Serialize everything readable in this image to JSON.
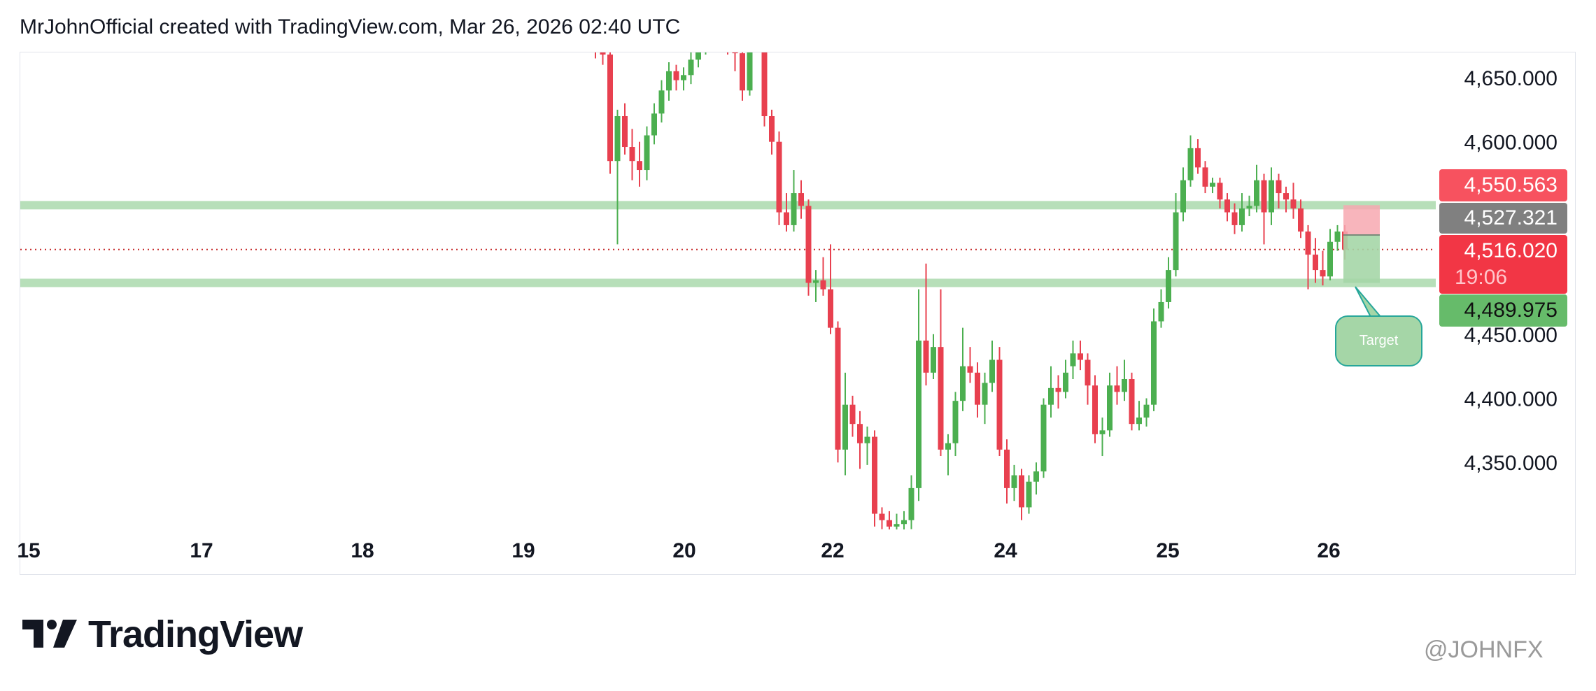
{
  "header": {
    "text": "MrJohnOfficial created with TradingView.com, Mar 26, 2026 02:40 UTC"
  },
  "branding": {
    "logo_text": "TradingView",
    "watermark": "@JOHNFX"
  },
  "chart_data": {
    "type": "candlestick",
    "colors": {
      "up": "#4caf50",
      "down": "#e8404f",
      "zone": "#b7dfb9",
      "current_line": "#c62828"
    },
    "ylim": [
      4298,
      4670
    ],
    "y_ticks": [
      "4,650.000",
      "4,600.000",
      "4,450.000",
      "4,400.000",
      "4,350.000"
    ],
    "y_tick_values": [
      4650,
      4600,
      4450,
      4400,
      4350
    ],
    "x_ticks": [
      "15",
      "17",
      "18",
      "19",
      "20",
      "22",
      "24",
      "25",
      "26"
    ],
    "grid": false,
    "ohlc": [
      [
        4680,
        4690,
        4665,
        4672
      ],
      [
        4672,
        4678,
        4660,
        4668
      ],
      [
        4668,
        4672,
        4575,
        4585
      ],
      [
        4585,
        4625,
        4520,
        4620
      ],
      [
        4620,
        4630,
        4590,
        4596
      ],
      [
        4596,
        4610,
        4570,
        4585
      ],
      [
        4585,
        4600,
        4565,
        4578
      ],
      [
        4578,
        4612,
        4570,
        4605
      ],
      [
        4605,
        4630,
        4598,
        4622
      ],
      [
        4622,
        4648,
        4615,
        4640
      ],
      [
        4640,
        4662,
        4632,
        4655
      ],
      [
        4655,
        4660,
        4640,
        4648
      ],
      [
        4648,
        4658,
        4640,
        4652
      ],
      [
        4652,
        4672,
        4645,
        4664
      ],
      [
        4664,
        4680,
        4658,
        4675
      ],
      [
        4675,
        4692,
        4668,
        4685
      ],
      [
        4685,
        4695,
        4678,
        4690
      ],
      [
        4690,
        4694,
        4678,
        4685
      ],
      [
        4685,
        4690,
        4668,
        4676
      ],
      [
        4676,
        4682,
        4655,
        4669
      ],
      [
        4669,
        4672,
        4632,
        4640
      ],
      [
        4640,
        4680,
        4636,
        4676
      ],
      [
        4676,
        4690,
        4670,
        4680
      ],
      [
        4680,
        4685,
        4612,
        4620
      ],
      [
        4620,
        4625,
        4590,
        4600
      ],
      [
        4600,
        4608,
        4535,
        4545
      ],
      [
        4545,
        4560,
        4530,
        4535
      ],
      [
        4535,
        4578,
        4530,
        4560
      ],
      [
        4560,
        4570,
        4540,
        4550
      ],
      [
        4550,
        4555,
        4480,
        4490
      ],
      [
        4490,
        4500,
        4475,
        4492
      ],
      [
        4492,
        4510,
        4480,
        4485
      ],
      [
        4485,
        4520,
        4450,
        4455
      ],
      [
        4455,
        4460,
        4350,
        4360
      ],
      [
        4360,
        4420,
        4340,
        4395
      ],
      [
        4395,
        4402,
        4370,
        4380
      ],
      [
        4380,
        4390,
        4345,
        4365
      ],
      [
        4365,
        4378,
        4348,
        4370
      ],
      [
        4370,
        4375,
        4300,
        4310
      ],
      [
        4310,
        4315,
        4298,
        4305
      ],
      [
        4305,
        4312,
        4296,
        4300
      ],
      [
        4300,
        4310,
        4296,
        4302
      ],
      [
        4302,
        4312,
        4296,
        4305
      ],
      [
        4305,
        4340,
        4298,
        4330
      ],
      [
        4330,
        4485,
        4320,
        4445
      ],
      [
        4445,
        4505,
        4410,
        4420
      ],
      [
        4420,
        4450,
        4415,
        4440
      ],
      [
        4440,
        4485,
        4355,
        4360
      ],
      [
        4360,
        4372,
        4340,
        4365
      ],
      [
        4365,
        4405,
        4355,
        4398
      ],
      [
        4398,
        4455,
        4390,
        4425
      ],
      [
        4425,
        4440,
        4412,
        4420
      ],
      [
        4420,
        4428,
        4385,
        4395
      ],
      [
        4395,
        4420,
        4380,
        4412
      ],
      [
        4412,
        4445,
        4405,
        4430
      ],
      [
        4430,
        4440,
        4355,
        4360
      ],
      [
        4360,
        4368,
        4318,
        4330
      ],
      [
        4330,
        4348,
        4320,
        4340
      ],
      [
        4340,
        4345,
        4305,
        4315
      ],
      [
        4315,
        4340,
        4310,
        4335
      ],
      [
        4335,
        4350,
        4325,
        4343
      ],
      [
        4343,
        4400,
        4338,
        4395
      ],
      [
        4395,
        4425,
        4385,
        4408
      ],
      [
        4408,
        4418,
        4392,
        4405
      ],
      [
        4405,
        4430,
        4400,
        4420
      ],
      [
        4425,
        4445,
        4415,
        4435
      ],
      [
        4435,
        4445,
        4422,
        4430
      ],
      [
        4430,
        4435,
        4395,
        4410
      ],
      [
        4410,
        4418,
        4365,
        4372
      ],
      [
        4372,
        4385,
        4355,
        4375
      ],
      [
        4375,
        4420,
        4370,
        4410
      ],
      [
        4410,
        4425,
        4395,
        4405
      ],
      [
        4405,
        4430,
        4398,
        4415
      ],
      [
        4415,
        4420,
        4375,
        4380
      ],
      [
        4380,
        4398,
        4375,
        4385
      ],
      [
        4385,
        4400,
        4378,
        4395
      ],
      [
        4395,
        4470,
        4390,
        4460
      ],
      [
        4460,
        4485,
        4455,
        4475
      ],
      [
        4475,
        4510,
        4470,
        4500
      ],
      [
        4500,
        4560,
        4495,
        4545
      ],
      [
        4545,
        4580,
        4538,
        4570
      ],
      [
        4570,
        4605,
        4565,
        4595
      ],
      [
        4595,
        4602,
        4575,
        4580
      ],
      [
        4580,
        4585,
        4560,
        4565
      ],
      [
        4565,
        4572,
        4560,
        4568
      ],
      [
        4568,
        4572,
        4548,
        4555
      ],
      [
        4555,
        4560,
        4538,
        4545
      ],
      [
        4545,
        4552,
        4528,
        4535
      ],
      [
        4535,
        4560,
        4530,
        4548
      ],
      [
        4548,
        4558,
        4542,
        4550
      ],
      [
        4550,
        4582,
        4545,
        4570
      ],
      [
        4570,
        4575,
        4520,
        4545
      ],
      [
        4545,
        4580,
        4535,
        4570
      ],
      [
        4570,
        4575,
        4548,
        4560
      ],
      [
        4560,
        4565,
        4545,
        4555
      ],
      [
        4555,
        4568,
        4540,
        4548
      ],
      [
        4548,
        4555,
        4525,
        4530
      ],
      [
        4530,
        4535,
        4485,
        4512
      ],
      [
        4512,
        4525,
        4490,
        4500
      ],
      [
        4500,
        4515,
        4488,
        4495
      ],
      [
        4495,
        4532,
        4492,
        4522
      ],
      [
        4522,
        4535,
        4515,
        4530
      ],
      [
        4530,
        4535,
        4508,
        4516
      ]
    ],
    "zones": [
      4550.563,
      4489.975
    ],
    "position": {
      "stop": 4550.563,
      "entry": 4527.321,
      "target": 4489.975
    },
    "annotation": "Target",
    "labels": {
      "stop": "4,550.563",
      "entry": "4,527.321",
      "last_price": "4,516.020",
      "countdown": "19:06",
      "target": "4,489.975"
    },
    "last_price": 4516.02
  }
}
